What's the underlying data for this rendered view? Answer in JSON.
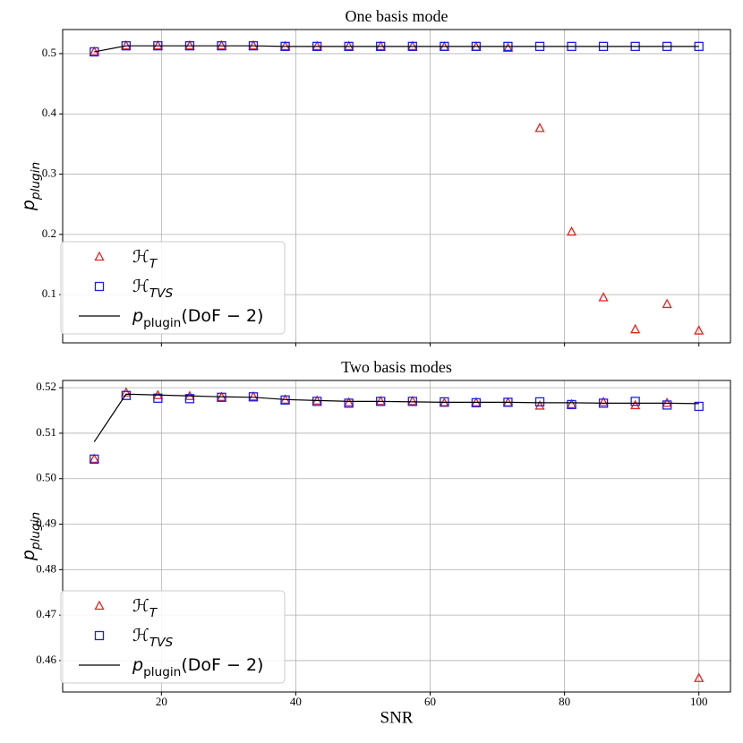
{
  "chart_data": [
    {
      "type": "scatter",
      "title": "One basis mode",
      "ylabel": "p_plugin",
      "x": [
        10,
        14.74,
        19.47,
        24.21,
        28.95,
        33.68,
        38.42,
        43.16,
        47.89,
        52.63,
        57.37,
        62.11,
        66.84,
        71.58,
        76.32,
        81.05,
        85.79,
        90.53,
        95.26,
        100
      ],
      "xlim": [
        5.3,
        104.7
      ],
      "xticks": [
        20,
        40,
        60,
        80,
        100
      ],
      "ylim": [
        0.02,
        0.54
      ],
      "yticks": [
        0.1,
        0.2,
        0.3,
        0.4,
        0.5
      ],
      "grid": true,
      "legend": "lower left",
      "series": [
        {
          "name": "ℋ_T",
          "marker": "triangle",
          "color": "#e8231f",
          "values": [
            0.503,
            0.513,
            0.513,
            0.513,
            0.513,
            0.513,
            0.512,
            0.512,
            0.512,
            0.512,
            0.512,
            0.511,
            0.511,
            0.509,
            0.376,
            0.204,
            0.095,
            0.042,
            0.084,
            0.04
          ]
        },
        {
          "name": "ℋ_TVS",
          "marker": "square",
          "color": "#1f1fe8",
          "values": [
            0.503,
            0.513,
            0.513,
            0.513,
            0.513,
            0.513,
            0.512,
            0.512,
            0.512,
            0.512,
            0.512,
            0.512,
            0.512,
            0.512,
            0.512,
            0.512,
            0.512,
            0.512,
            0.512,
            0.512
          ]
        },
        {
          "name": "p_plugin(DoF − 2)",
          "marker": "line",
          "color": "#000000",
          "values": [
            0.503,
            0.513,
            0.513,
            0.513,
            0.513,
            0.513,
            0.512,
            0.512,
            0.512,
            0.512,
            0.512,
            0.512,
            0.512,
            0.512,
            0.512,
            0.512,
            0.512,
            0.512,
            0.512,
            0.512
          ]
        }
      ]
    },
    {
      "type": "scatter",
      "title": "Two basis modes",
      "ylabel": "p_plugin",
      "xlabel": "SNR",
      "x": [
        10,
        14.74,
        19.47,
        24.21,
        28.95,
        33.68,
        38.42,
        43.16,
        47.89,
        52.63,
        57.37,
        62.11,
        66.84,
        71.58,
        76.32,
        81.05,
        85.79,
        90.53,
        95.26,
        100
      ],
      "xlim": [
        5.3,
        104.7
      ],
      "xticks": [
        20,
        40,
        60,
        80,
        100
      ],
      "ylim": [
        0.4531,
        0.5216
      ],
      "yticks": [
        0.46,
        0.47,
        0.48,
        0.49,
        {
          "value": 0.5,
          "label": "0.50"
        },
        0.51,
        0.52
      ],
      "grid": true,
      "legend": "lower left",
      "series": [
        {
          "name": "ℋ_T",
          "marker": "triangle",
          "color": "#e8231f",
          "values": [
            0.5043,
            0.5189,
            0.5183,
            0.5181,
            0.5179,
            0.518,
            0.5173,
            0.5171,
            0.5167,
            0.517,
            0.517,
            0.5166,
            0.5167,
            0.5167,
            0.516,
            0.5163,
            0.5168,
            0.5161,
            0.5166,
            0.4561
          ]
        },
        {
          "name": "ℋ_TVS",
          "marker": "square",
          "color": "#1f1fe8",
          "values": [
            0.5043,
            0.5183,
            0.5177,
            0.5176,
            0.5179,
            0.518,
            0.5173,
            0.517,
            0.5166,
            0.517,
            0.517,
            0.5169,
            0.5167,
            0.5168,
            0.5169,
            0.5163,
            0.5166,
            0.517,
            0.5162,
            0.5159
          ]
        },
        {
          "name": "p_plugin(DoF − 2)",
          "marker": "line",
          "color": "#000000",
          "values": [
            0.5081,
            0.5186,
            0.5184,
            0.5182,
            0.518,
            0.5179,
            0.5174,
            0.5172,
            0.517,
            0.517,
            0.5169,
            0.5168,
            0.5168,
            0.5168,
            0.5167,
            0.5167,
            0.5166,
            0.5166,
            0.5166,
            0.5165
          ]
        }
      ]
    }
  ]
}
